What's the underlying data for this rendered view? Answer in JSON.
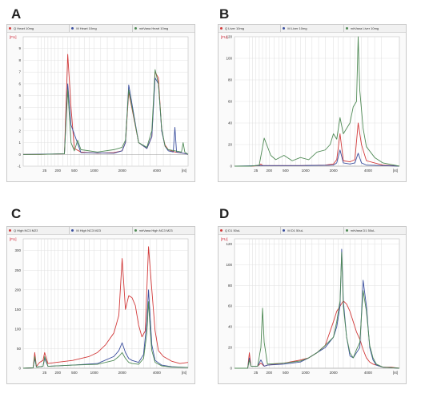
{
  "panels": [
    {
      "letter": "A",
      "legend": [
        "Q Heart 10mg",
        "M Heart 10mg",
        "mirVana Heart 10mg"
      ],
      "yunit": "[FU]",
      "xunit": "[nt]"
    },
    {
      "letter": "B",
      "legend": [
        "Q Liver 10mg",
        "M Liver 10mg",
        "mirVana Liver 10mg"
      ],
      "yunit": "[FU]",
      "xunit": "[nt]"
    },
    {
      "letter": "C",
      "legend": [
        "Q High NC3 M23",
        "M High NC3 M23",
        "mirVana High NC3 M23"
      ],
      "yunit": "[FU]",
      "xunit": "[nt]"
    },
    {
      "letter": "D",
      "legend": [
        "Q D1 50uL",
        "M D1 50uL",
        "mirVana D1 50uL"
      ],
      "yunit": "[FU]",
      "xunit": "[nt]"
    }
  ],
  "colors": {
    "q": "#d23a3a",
    "m": "#3b4f9e",
    "mirvana": "#4f8a55"
  },
  "chart_data": [
    {
      "type": "line",
      "title": "",
      "xlabel": "[nt]",
      "ylabel": "[FU]",
      "ylim": [
        -1,
        10
      ],
      "yticks": [
        -1,
        0,
        1,
        2,
        3,
        4,
        5,
        6,
        7,
        8,
        9
      ],
      "xticks": [
        "25",
        "200",
        "500",
        "1000",
        "2000",
        "4000"
      ],
      "grid": true,
      "series": [
        {
          "name": "Q Heart 10mg",
          "color": "#d23a3a",
          "x": [
            0,
            10,
            25,
            27,
            29,
            31,
            35,
            45,
            55,
            60,
            62,
            64,
            70,
            75,
            78,
            80,
            82,
            84,
            86,
            88,
            92,
            97,
            100
          ],
          "y": [
            0,
            0,
            0.05,
            8.5,
            4,
            0.5,
            0.2,
            0.1,
            0.15,
            0.3,
            1,
            5.3,
            1,
            0.5,
            1.5,
            7,
            6.5,
            2,
            0.8,
            0.4,
            0.2,
            0.1,
            0
          ]
        },
        {
          "name": "M Heart 10mg",
          "color": "#3b4f9e",
          "x": [
            0,
            25,
            27,
            29,
            35,
            55,
            60,
            62,
            64,
            70,
            75,
            78,
            80,
            82,
            84,
            86,
            88,
            91,
            92,
            93,
            97,
            100
          ],
          "y": [
            0,
            0.05,
            6,
            2.5,
            0.15,
            0.1,
            0.3,
            1,
            5.9,
            1,
            0.5,
            1.5,
            6.5,
            6,
            2,
            0.7,
            0.3,
            0.2,
            2.3,
            0.2,
            0.1,
            0
          ]
        },
        {
          "name": "mirVana Heart 10mg",
          "color": "#4f8a55",
          "x": [
            0,
            10,
            25,
            27,
            29,
            31,
            33,
            35,
            45,
            55,
            60,
            62,
            64,
            70,
            75,
            78,
            80,
            82,
            84,
            86,
            88,
            92,
            96,
            97,
            98,
            100
          ],
          "y": [
            0,
            0,
            0.05,
            5.5,
            1,
            0.3,
            1.2,
            0.4,
            0.2,
            0.4,
            0.6,
            1.2,
            5.5,
            1,
            0.6,
            2,
            7.2,
            6,
            2.2,
            0.7,
            0.4,
            0.3,
            0.2,
            1,
            0.2,
            0
          ]
        }
      ]
    },
    {
      "type": "line",
      "title": "",
      "xlabel": "[nt]",
      "ylabel": "[FU]",
      "ylim": [
        0,
        120
      ],
      "yticks": [
        0,
        20,
        40,
        60,
        80,
        100,
        120
      ],
      "xticks": [
        "25",
        "200",
        "500",
        "1000",
        "2000",
        "4000"
      ],
      "grid": true,
      "series": [
        {
          "name": "Q Liver 10mg",
          "color": "#d23a3a",
          "x": [
            0,
            10,
            15,
            16,
            17,
            20,
            40,
            55,
            60,
            62,
            64,
            66,
            70,
            73,
            75,
            77,
            80,
            90,
            100
          ],
          "y": [
            0,
            0,
            0.5,
            2,
            0.5,
            0.5,
            0.5,
            1,
            2,
            6,
            30,
            5,
            4,
            6,
            40,
            20,
            5,
            1,
            0
          ]
        },
        {
          "name": "M Liver 10mg",
          "color": "#3b4f9e",
          "x": [
            0,
            15,
            20,
            40,
            55,
            60,
            62,
            64,
            66,
            70,
            73,
            75,
            77,
            80,
            90,
            100
          ],
          "y": [
            0,
            0.5,
            0.5,
            0.5,
            0.8,
            1,
            3,
            15,
            3,
            2,
            3,
            12,
            3,
            1,
            0.5,
            0
          ]
        },
        {
          "name": "mirVana Liver 10mg",
          "color": "#4f8a55",
          "x": [
            0,
            10,
            15,
            18,
            22,
            25,
            30,
            35,
            40,
            45,
            50,
            55,
            58,
            60,
            62,
            64,
            66,
            68,
            70,
            72,
            74,
            75,
            76,
            78,
            80,
            85,
            90,
            100
          ],
          "y": [
            0,
            0,
            1,
            26,
            10,
            6,
            10,
            5,
            8,
            6,
            13,
            15,
            20,
            30,
            25,
            45,
            30,
            35,
            40,
            55,
            60,
            120,
            70,
            35,
            18,
            8,
            3,
            0
          ]
        }
      ]
    },
    {
      "type": "line",
      "title": "",
      "xlabel": "[nt]",
      "ylabel": "[FU]",
      "ylim": [
        0,
        330
      ],
      "yticks": [
        0,
        50,
        100,
        150,
        200,
        250,
        300
      ],
      "xticks": [
        "25",
        "200",
        "500",
        "1000",
        "2000",
        "4000"
      ],
      "grid": true,
      "series": [
        {
          "name": "Q High NC3 M23",
          "color": "#d23a3a",
          "x": [
            0,
            6,
            7,
            8,
            10,
            12,
            13,
            15,
            20,
            30,
            40,
            45,
            50,
            55,
            58,
            60,
            62,
            64,
            66,
            68,
            70,
            72,
            74,
            76,
            78,
            80,
            82,
            85,
            90,
            95,
            100
          ],
          "y": [
            0,
            1,
            40,
            5,
            15,
            20,
            40,
            12,
            15,
            20,
            30,
            40,
            60,
            90,
            135,
            280,
            150,
            185,
            180,
            160,
            110,
            80,
            95,
            310,
            200,
            95,
            45,
            30,
            18,
            12,
            15
          ]
        },
        {
          "name": "M High NC3 M23",
          "color": "#3b4f9e",
          "x": [
            0,
            6,
            7,
            8,
            12,
            13,
            15,
            30,
            45,
            55,
            58,
            60,
            62,
            64,
            66,
            70,
            73,
            75,
            76,
            77,
            78,
            80,
            84,
            90,
            100
          ],
          "y": [
            0,
            1,
            25,
            3,
            5,
            25,
            5,
            8,
            12,
            30,
            45,
            65,
            40,
            25,
            20,
            15,
            35,
            120,
            200,
            130,
            60,
            20,
            8,
            4,
            2
          ]
        },
        {
          "name": "mirVana High NC3 M23",
          "color": "#4f8a55",
          "x": [
            0,
            6,
            7,
            8,
            12,
            13,
            15,
            30,
            45,
            55,
            58,
            60,
            62,
            64,
            66,
            70,
            73,
            75,
            76,
            77,
            78,
            80,
            84,
            90,
            100
          ],
          "y": [
            0,
            1,
            30,
            3,
            5,
            30,
            5,
            8,
            10,
            20,
            30,
            40,
            25,
            15,
            12,
            10,
            25,
            90,
            170,
            100,
            45,
            15,
            6,
            3,
            2
          ]
        }
      ]
    },
    {
      "type": "line",
      "title": "",
      "xlabel": "[nt]",
      "ylabel": "[FU]",
      "ylim": [
        0,
        125
      ],
      "yticks": [
        0,
        20,
        40,
        60,
        80,
        100,
        120
      ],
      "xticks": [
        "25",
        "200",
        "500",
        "1000",
        "2000",
        "4000"
      ],
      "grid": true,
      "series": [
        {
          "name": "Q D1 50uL",
          "color": "#d23a3a",
          "x": [
            0,
            8,
            9,
            10,
            14,
            16,
            18,
            20,
            30,
            40,
            45,
            50,
            55,
            60,
            62,
            64,
            66,
            68,
            70,
            72,
            74,
            76,
            78,
            80,
            82,
            84,
            86,
            88,
            90,
            95,
            100
          ],
          "y": [
            0,
            0,
            15,
            2,
            2,
            5,
            2,
            3,
            5,
            8,
            10,
            15,
            22,
            45,
            55,
            60,
            65,
            62,
            55,
            45,
            35,
            28,
            18,
            10,
            6,
            4,
            3,
            2,
            1,
            1,
            0
          ]
        },
        {
          "name": "M D1 50uL",
          "color": "#3b4f9e",
          "x": [
            0,
            8,
            9,
            10,
            14,
            16,
            18,
            20,
            30,
            40,
            45,
            50,
            55,
            60,
            62,
            64,
            65,
            66,
            68,
            70,
            72,
            74,
            76,
            78,
            80,
            82,
            84,
            86,
            90,
            100
          ],
          "y": [
            0,
            0,
            10,
            2,
            2,
            8,
            2,
            3,
            4,
            6,
            10,
            15,
            20,
            30,
            40,
            60,
            115,
            65,
            30,
            12,
            10,
            15,
            20,
            85,
            60,
            20,
            8,
            3,
            1,
            0
          ]
        },
        {
          "name": "mirVana D1 50uL",
          "color": "#4f8a55",
          "x": [
            0,
            8,
            9,
            10,
            14,
            16,
            17,
            18,
            20,
            30,
            40,
            45,
            50,
            55,
            60,
            62,
            64,
            65,
            66,
            68,
            70,
            72,
            74,
            76,
            78,
            80,
            82,
            84,
            86,
            90,
            100
          ],
          "y": [
            0,
            0,
            8,
            2,
            2,
            20,
            58,
            25,
            4,
            5,
            7,
            10,
            15,
            22,
            30,
            45,
            65,
            112,
            60,
            30,
            15,
            10,
            18,
            25,
            75,
            55,
            22,
            10,
            4,
            1,
            0
          ]
        }
      ]
    }
  ]
}
